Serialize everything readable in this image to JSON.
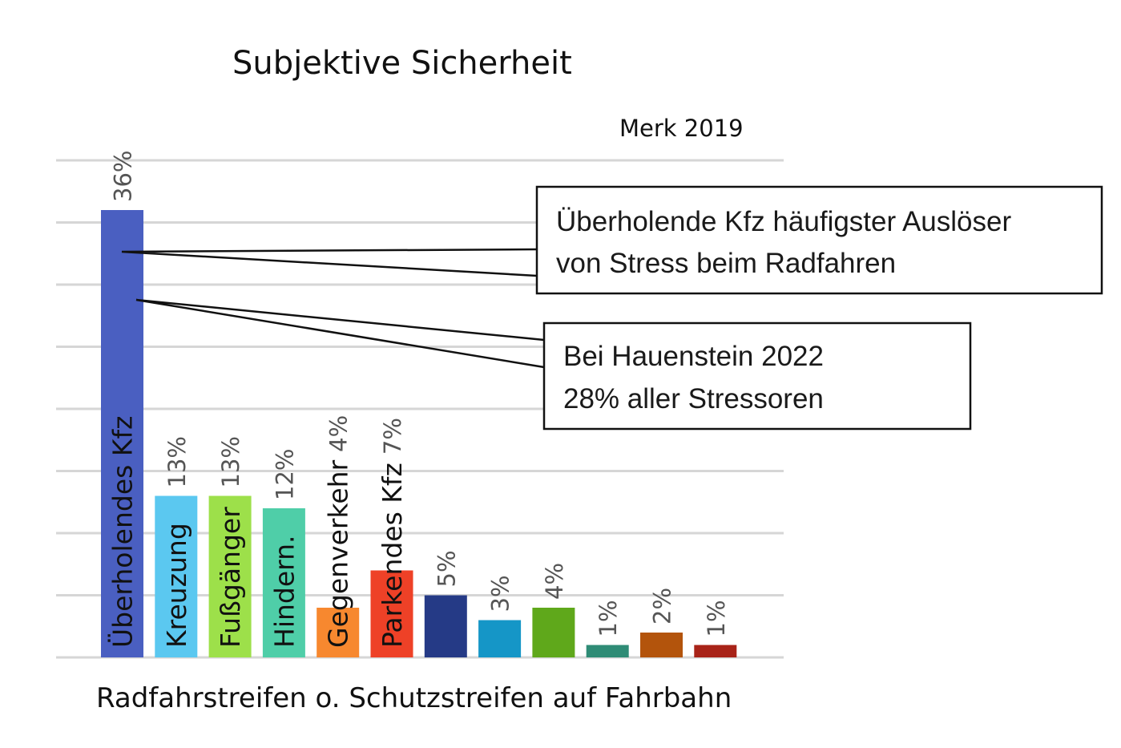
{
  "chart_data": {
    "type": "bar",
    "title": "Subjektive Sicherheit",
    "source": "Merk 2019",
    "xlabel": "Radfahrstreifen o. Schutzstreifen auf Fahrbahn",
    "ylabel": "",
    "ylim": [
      0,
      40
    ],
    "grid": true,
    "categories": [
      "Überholendes Kfz",
      "Kreuzung",
      "Fußgänger",
      "Hindern.",
      "Gegenverkehr",
      "Parkendes Kfz",
      "",
      "",
      "",
      "",
      "",
      ""
    ],
    "values": [
      36,
      13,
      13,
      12,
      4,
      7,
      5,
      3,
      4,
      1,
      2,
      1
    ],
    "value_labels": [
      "36%",
      "13%",
      "13%",
      "12%",
      "4%",
      "7%",
      "5%",
      "3%",
      "4%",
      "1%",
      "2%",
      "1%"
    ],
    "colors": [
      "#4a5fc1",
      "#5bc8f0",
      "#9de04a",
      "#4fcea8",
      "#f7882f",
      "#ee4127",
      "#253a86",
      "#1596c7",
      "#5fa81b",
      "#2f8c76",
      "#b3540c",
      "#a82318"
    ],
    "annotations": [
      {
        "name": "callout-stress",
        "lines": [
          "Überholende Kfz häufigster Auslöser",
          "von Stress beim Radfahren"
        ]
      },
      {
        "name": "callout-hauenstein",
        "lines": [
          "Bei Hauenstein 2022",
          "28% aller Stressoren"
        ]
      }
    ]
  }
}
